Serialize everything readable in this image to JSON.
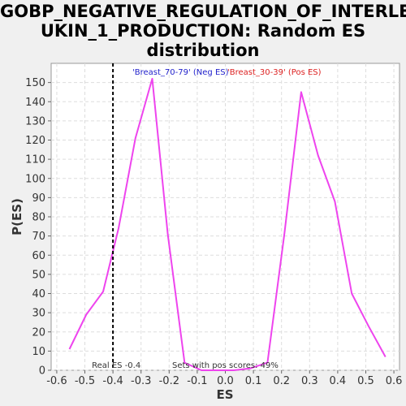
{
  "chart_data": {
    "type": "line",
    "title_lines": [
      "GOBP_NEGATIVE_REGULATION_OF_INTERLE",
      "UKIN_1_PRODUCTION: Random ES",
      "distribution"
    ],
    "xlabel": "ES",
    "ylabel": "P(ES)",
    "xlim": [
      -0.62,
      0.62
    ],
    "ylim": [
      0,
      160
    ],
    "x_ticks": [
      "-0.6",
      "-0.5",
      "-0.4",
      "-0.3",
      "-0.2",
      "-0.1",
      "0.0",
      "0.1",
      "0.2",
      "0.3",
      "0.4",
      "0.5",
      "0.6"
    ],
    "y_ticks": [
      "0",
      "10",
      "20",
      "30",
      "40",
      "50",
      "60",
      "70",
      "80",
      "90",
      "100",
      "110",
      "120",
      "130",
      "140",
      "150"
    ],
    "grid": true,
    "series": [
      {
        "color": "#ee44ee",
        "x": [
          -0.555,
          -0.495,
          -0.435,
          -0.38,
          -0.32,
          -0.26,
          -0.205,
          -0.145,
          -0.085,
          -0.03,
          0.03,
          0.09,
          0.15,
          0.21,
          0.27,
          0.33,
          0.39,
          0.45,
          0.51,
          0.57
        ],
        "y": [
          11,
          29,
          41,
          74,
          121,
          152,
          71,
          4,
          0,
          0,
          0,
          1,
          4,
          71,
          145,
          112,
          88,
          40,
          23,
          7
        ]
      }
    ],
    "real_es": {
      "x": -0.4,
      "label": "Real ES -0.4"
    },
    "labels": {
      "neg": {
        "text": "'Breast_70-79' (Neg ES)",
        "color": "#2222cc"
      },
      "pos": {
        "text": "'Breast_30-39' (Pos ES)",
        "color": "#dd2222"
      },
      "pos_scores": "Sets with pos scores: 49%"
    }
  }
}
